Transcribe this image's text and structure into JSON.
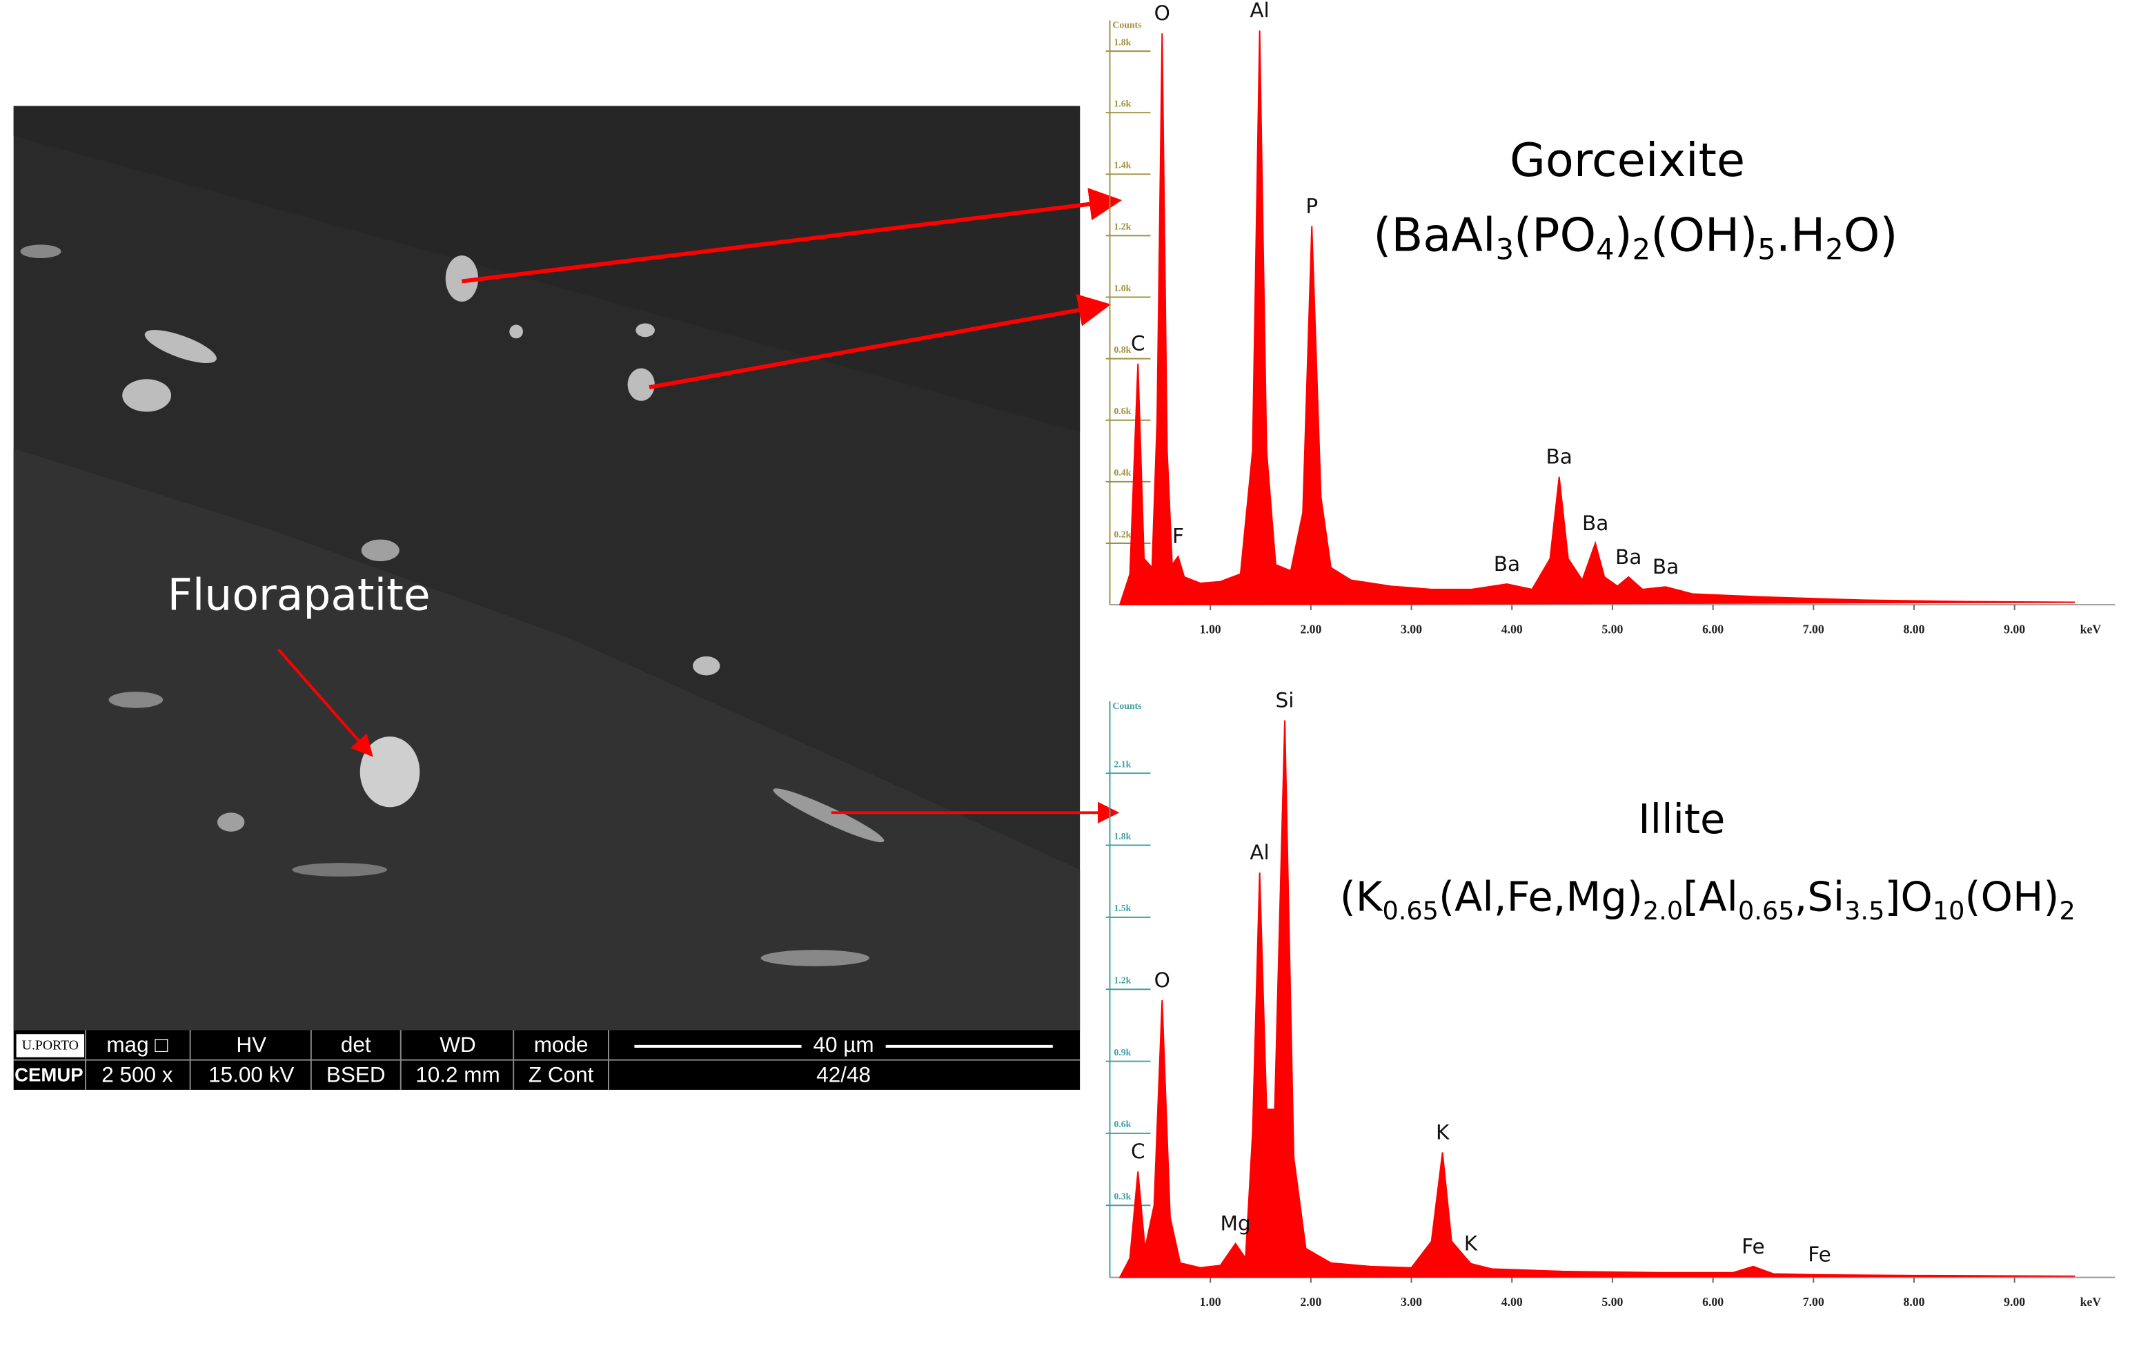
{
  "chart_data": [
    {
      "type": "area",
      "title": "Gorceixite",
      "formula": [
        {
          "t": "(BaAl"
        },
        {
          "sub": "3"
        },
        {
          "t": "(PO"
        },
        {
          "sub": "4"
        },
        {
          "t": ")"
        },
        {
          "sub": "2"
        },
        {
          "t": "(OH)"
        },
        {
          "sub": "5"
        },
        {
          "t": ".H"
        },
        {
          "sub": "2"
        },
        {
          "t": "O)"
        }
      ],
      "y_label": "Counts",
      "x_label": "keV",
      "color": "#ff0000",
      "axis_color": "#a09040",
      "x": [
        0.1,
        0.2,
        0.28,
        0.34,
        0.42,
        0.47,
        0.52,
        0.57,
        0.62,
        0.68,
        0.74,
        0.9,
        1.1,
        1.3,
        1.42,
        1.49,
        1.56,
        1.65,
        1.8,
        1.92,
        2.01,
        2.1,
        2.2,
        2.4,
        2.8,
        3.2,
        3.6,
        3.95,
        4.2,
        4.38,
        4.47,
        4.56,
        4.7,
        4.83,
        4.92,
        5.05,
        5.16,
        5.3,
        5.53,
        5.8,
        6.5,
        7.5,
        8.5,
        9.6
      ],
      "values": [
        0,
        100,
        784,
        150,
        120,
        600,
        1858,
        500,
        130,
        157,
        90,
        70,
        75,
        100,
        500,
        1867,
        500,
        130,
        110,
        300,
        1231,
        350,
        120,
        80,
        60,
        50,
        50,
        67,
        50,
        150,
        416,
        150,
        80,
        200,
        90,
        60,
        90,
        50,
        58,
        35,
        25,
        15,
        10,
        8
      ],
      "xlim": [
        0,
        10
      ],
      "xticks": [
        {
          "value": 1,
          "label": "1.00"
        },
        {
          "value": 2,
          "label": "2.00"
        },
        {
          "value": 3,
          "label": "3.00"
        },
        {
          "value": 4,
          "label": "4.00"
        },
        {
          "value": 5,
          "label": "5.00"
        },
        {
          "value": 6,
          "label": "6.00"
        },
        {
          "value": 7,
          "label": "7.00"
        },
        {
          "value": 8,
          "label": "8.00"
        },
        {
          "value": 9,
          "label": "9.00"
        }
      ],
      "ylim": [
        0,
        1900
      ],
      "yticks": [
        {
          "value": 200,
          "label": "0.2k"
        },
        {
          "value": 400,
          "label": "0.4k"
        },
        {
          "value": 600,
          "label": "0.6k"
        },
        {
          "value": 800,
          "label": "0.8k"
        },
        {
          "value": 1000,
          "label": "1.0k"
        },
        {
          "value": 1200,
          "label": "1.2k"
        },
        {
          "value": 1400,
          "label": "1.4k"
        },
        {
          "value": 1600,
          "label": "1.6k"
        },
        {
          "value": 1800,
          "label": "1.8k"
        }
      ],
      "peak_labels": [
        {
          "label": "C",
          "x": 0.28
        },
        {
          "label": "O",
          "x": 0.52
        },
        {
          "label": "F",
          "x": 0.68
        },
        {
          "label": "Al",
          "x": 1.49
        },
        {
          "label": "P",
          "x": 2.01
        },
        {
          "label": "Ba",
          "x": 3.95
        },
        {
          "label": "Ba",
          "x": 4.47
        },
        {
          "label": "Ba",
          "x": 4.83
        },
        {
          "label": "Ba",
          "x": 5.16
        },
        {
          "label": "Ba",
          "x": 5.53
        }
      ]
    },
    {
      "type": "area",
      "title": "Illite",
      "formula": [
        {
          "t": "(K"
        },
        {
          "sub": "0.65"
        },
        {
          "t": "(Al,Fe,Mg)"
        },
        {
          "sub": "2.0"
        },
        {
          "t": "[Al"
        },
        {
          "sub": "0.65"
        },
        {
          "t": ",Si"
        },
        {
          "sub": "3.5"
        },
        {
          "t": "]O"
        },
        {
          "sub": "10"
        },
        {
          "t": "(OH)"
        },
        {
          "sub": "2"
        }
      ],
      "y_label": "Counts",
      "x_label": "keV",
      "color": "#ff0000",
      "axis_color": "#40a0a0",
      "x": [
        0.1,
        0.2,
        0.28,
        0.35,
        0.44,
        0.52,
        0.6,
        0.7,
        0.9,
        1.1,
        1.25,
        1.35,
        1.42,
        1.49,
        1.56,
        1.64,
        1.74,
        1.83,
        1.95,
        2.2,
        2.6,
        3.0,
        3.2,
        3.31,
        3.4,
        3.59,
        3.8,
        4.5,
        5.5,
        6.2,
        6.4,
        6.6,
        7.06,
        8,
        9.6
      ],
      "values": [
        0,
        80,
        441,
        120,
        300,
        1155,
        250,
        60,
        40,
        50,
        141,
        80,
        600,
        1686,
        700,
        700,
        2320,
        500,
        120,
        60,
        45,
        40,
        150,
        521,
        150,
        57,
        35,
        25,
        20,
        20,
        45,
        15,
        11,
        8,
        5
      ],
      "xlim": [
        0,
        10
      ],
      "xticks": [
        {
          "value": 1,
          "label": "1.00"
        },
        {
          "value": 2,
          "label": "2.00"
        },
        {
          "value": 3,
          "label": "3.00"
        },
        {
          "value": 4,
          "label": "4.00"
        },
        {
          "value": 5,
          "label": "5.00"
        },
        {
          "value": 6,
          "label": "6.00"
        },
        {
          "value": 7,
          "label": "7.00"
        },
        {
          "value": 8,
          "label": "8.00"
        },
        {
          "value": 9,
          "label": "9.00"
        }
      ],
      "ylim": [
        0,
        2400
      ],
      "yticks": [
        {
          "value": 300,
          "label": "0.3k"
        },
        {
          "value": 600,
          "label": "0.6k"
        },
        {
          "value": 900,
          "label": "0.9k"
        },
        {
          "value": 1200,
          "label": "1.2k"
        },
        {
          "value": 1500,
          "label": "1.5k"
        },
        {
          "value": 1800,
          "label": "1.8k"
        },
        {
          "value": 2100,
          "label": "2.1k"
        }
      ],
      "peak_labels": [
        {
          "label": "C",
          "x": 0.28
        },
        {
          "label": "O",
          "x": 0.52
        },
        {
          "label": "Mg",
          "x": 1.25
        },
        {
          "label": "Al",
          "x": 1.49
        },
        {
          "label": "Si",
          "x": 1.74
        },
        {
          "label": "K",
          "x": 3.31
        },
        {
          "label": "K",
          "x": 3.59
        },
        {
          "label": "Fe",
          "x": 6.4
        },
        {
          "label": "Fe",
          "x": 7.06
        }
      ]
    }
  ],
  "sem": {
    "label": "Fluorapatite",
    "info_bar": {
      "logo_top": "U.PORTO",
      "logo_bottom": "CEMUP",
      "headers": [
        "mag □",
        "HV",
        "det",
        "WD",
        "mode"
      ],
      "values": [
        "2 500 x",
        "15.00 kV",
        "BSED",
        "10.2 mm",
        "Z Cont"
      ],
      "scale_bar": "40 µm",
      "frame": "42/48"
    }
  }
}
